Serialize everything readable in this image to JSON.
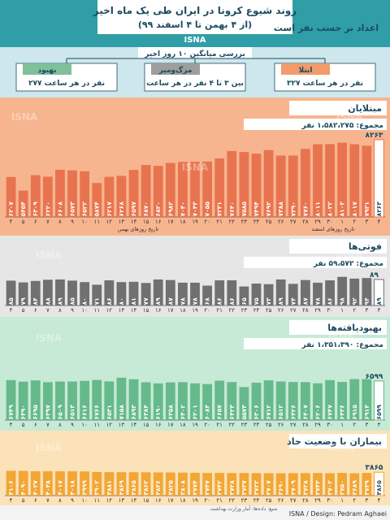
{
  "header": {
    "title": "روند شیوع کرونا در ایران طی یک ماه اخیر",
    "subtitle": "(از ۴ بهمن تا ۴ اسفند ۹۹)",
    "agency": "ISNA",
    "by_person_label": "اعداد بر حسب نفر است"
  },
  "summary": {
    "heading": "بررسی میانگین ۱۰ روز اخیر",
    "items": [
      {
        "title": "بهبود",
        "text": "۲۷۷ نفر در هر ساعت",
        "color": "#7fbf9b"
      },
      {
        "title": "مرگ‌ومیر",
        "text": "بین ۳ تا ۴ نفر در هر ساعت",
        "color": "#9e9e9e"
      },
      {
        "title": "ابتلا",
        "text": "۳۲۷ نفر در هر ساعت",
        "color": "#f29b6b"
      }
    ]
  },
  "footer": {
    "source": "منبع: داده‌ها: آمار وزارت بهداشت",
    "credit": "ISNA / Design: Pedram Aghaei",
    "watermark": "ISNA"
  },
  "chart_data": [
    {
      "type": "bar",
      "title": "مبتلایان",
      "total": "مجموع: ۱،۵۸۲،۲۷۵ نفر",
      "categories": [
        "۴",
        "۵",
        "۶",
        "۷",
        "۸",
        "۹",
        "۱۰",
        "۱۱",
        "۱۲",
        "۱۳",
        "۱۴",
        "۱۵",
        "۱۶",
        "۱۷",
        "۱۸",
        "۱۹",
        "۲۰",
        "۲۱",
        "۲۲",
        "۲۳",
        "۲۴",
        "۲۵",
        "۲۶",
        "۲۷",
        "۲۸",
        "۲۹",
        "۳۰",
        "۱",
        "۲",
        "۳",
        "۴"
      ],
      "labels": [
        "۶۲۰۷",
        "۵۴۵۴",
        "۶۳۰۹",
        "۶۲۲۰",
        "۶۶۰۸",
        "۶۵۷۳",
        "۶۵۲۲",
        "۵۸۷۴",
        "۶۲۱۷",
        "۶۲۶۸",
        "۶۵۹۷",
        "۶۸۷۰",
        "۶۸۲۰",
        "۶۹۸۲",
        "۷۰۴۰",
        "۷۰۴۳",
        "۷۰۵۵",
        "۷۲۳۱",
        "۷۶۴۰",
        "۷۵۸۵",
        "۷۴۹۴",
        "۷۶۹۲",
        "۷۳۸۸",
        "۷۳۹۰",
        "۷۷۶۰",
        "۸۰۱۱",
        "۸۰۲۲",
        "۸۱۰۳",
        "۸۰۱۷",
        "۷۹۳۱",
        "۸۲۶۳"
      ],
      "values": [
        6207,
        5454,
        6309,
        6220,
        6608,
        6573,
        6522,
        5874,
        6217,
        6268,
        6597,
        6870,
        6820,
        6982,
        7040,
        7043,
        7055,
        7231,
        7640,
        7585,
        7494,
        7692,
        7388,
        7390,
        7760,
        8011,
        8022,
        8103,
        8017,
        7931,
        8263
      ],
      "month_labels": [
        "تاریخ روزهای بهمن",
        "تاریخ روزهای اسفند"
      ],
      "color": "#e8744f"
    },
    {
      "type": "bar",
      "title": "فوتی‌ها",
      "total": "مجموع: ۵۹،۵۷۲ نفر",
      "categories": [
        "۴",
        "۵",
        "۶",
        "۷",
        "۸",
        "۹",
        "۱۰",
        "۱۱",
        "۱۲",
        "۱۳",
        "۱۴",
        "۱۵",
        "۱۶",
        "۱۷",
        "۱۸",
        "۱۹",
        "۲۰",
        "۲۱",
        "۲۲",
        "۲۳",
        "۲۴",
        "۲۵",
        "۲۶",
        "۲۷",
        "۲۸",
        "۲۹",
        "۳۰",
        "۱",
        "۲",
        "۳",
        "۴"
      ],
      "labels": [
        "۸۵",
        "۷۹",
        "۸۴",
        "۸۸",
        "۸۹",
        "۸۵",
        "۸۰",
        "۷۱",
        "۸۶",
        "۸۰",
        "۸۱",
        "۷۷",
        "۸۹",
        "۸۷",
        "۷۸",
        "۷۸",
        "۶۸",
        "۸۶",
        "۸۶",
        "۶۵",
        "۷۵",
        "۷۳",
        "۸۹",
        "۷۴",
        "۸۷",
        "۷۸",
        "۸۶",
        "۹۸",
        "۹۲",
        "۹۴",
        "۸۹"
      ],
      "values": [
        85,
        79,
        84,
        88,
        89,
        85,
        80,
        71,
        86,
        80,
        81,
        77,
        89,
        87,
        78,
        78,
        68,
        86,
        86,
        65,
        75,
        73,
        89,
        74,
        87,
        78,
        86,
        98,
        92,
        94,
        89
      ],
      "color": "#707070"
    },
    {
      "type": "bar",
      "title": "بهبودیافته‌ها",
      "total": "مجموع: ۱،۳۵۱،۳۹۰ نفر",
      "categories": [
        "۴",
        "۵",
        "۶",
        "۷",
        "۸",
        "۹",
        "۱۰",
        "۱۱",
        "۱۲",
        "۱۳",
        "۱۴",
        "۱۵",
        "۱۶",
        "۱۷",
        "۱۸",
        "۱۹",
        "۲۰",
        "۲۱",
        "۲۲",
        "۲۳",
        "۲۴",
        "۲۵",
        "۲۶",
        "۲۷",
        "۲۸",
        "۲۹",
        "۳۰",
        "۱",
        "۲",
        "۳",
        "۴"
      ],
      "labels": [
        "۶۷۴۹",
        "۶۴۹۰",
        "۶۶۹۵",
        "۶۳۹۷",
        "۶۵۰۹",
        "۶۵۱۳",
        "۶۶۱۶",
        "۶۷۶۶",
        "۶۵۳۱",
        "۷۱۵۸",
        "۶۸۹۳",
        "۶۳۸۴",
        "۶۱۹۰",
        "۶۳۵۸",
        "۶۴۰۲",
        "۶۲۰۱",
        "۶۰۸۴",
        "۶۶۵۷",
        "۶۴۲۳",
        "۵۵۷۳",
        "۶۳۰۶",
        "۶۷۱۲",
        "۶۵۱۲",
        "۶۴۲۶",
        "۶۴۰۷",
        "۶۲۰۶",
        "۶۷۴۷",
        "۶۴۳۶",
        "۶۹۱۵",
        "۶۹۱۴",
        "۶۵۹۹"
      ],
      "values": [
        6749,
        6490,
        6695,
        6397,
        6509,
        6513,
        6616,
        6766,
        6531,
        7158,
        6893,
        6384,
        6190,
        6358,
        6402,
        6201,
        6084,
        6657,
        6423,
        5573,
        6306,
        6712,
        6512,
        6426,
        6407,
        6206,
        6747,
        6436,
        6915,
        6914,
        6599
      ],
      "color": "#66b98a"
    },
    {
      "type": "bar",
      "title": "بیماران با وضعیت حاد",
      "categories": [
        "۴",
        "۵",
        "۶",
        "۷",
        "۸",
        "۹",
        "۱۰",
        "۱۱",
        "۱۲",
        "۱۳",
        "۱۴",
        "۱۵",
        "۱۶",
        "۱۷",
        "۱۸",
        "۱۹",
        "۲۰",
        "۲۱",
        "۲۲",
        "۲۳",
        "۲۴",
        "۲۵",
        "۲۶",
        "۲۷",
        "۲۸",
        "۲۹",
        "۳۰",
        "۱",
        "۲",
        "۳",
        "۴"
      ],
      "labels": [
        "۴۱۰۶",
        "۴۰۹۰",
        "۴۰۲۷",
        "۴۰۳۸",
        "۴۰۱۷",
        "۴۰۱۸",
        "۳۹۹۹",
        "۳۹۰۲",
        "۳۸۸۱",
        "۳۸۶۹",
        "۳۸۶۵",
        "۳۸۶۲",
        "۳۸۳۶",
        "۳۸۲۵",
        "۳۸۰۸",
        "۳۷۷۴",
        "۳۷۴۷",
        "۳۷۴۲",
        "۳۷۲۸",
        "۳۷۳۷",
        "۳۷۲۲",
        "۳۷۰۷",
        "۳۶۹۰",
        "۳۷۰۹",
        "۳۷۲۸",
        "۳۷۴۳",
        "۳۷۰۲",
        "۳۷۵۰",
        "۳۶۸۹",
        "۳۷۴۹",
        "۳۸۶۵"
      ],
      "values": [
        4106,
        4090,
        4027,
        4038,
        4017,
        4018,
        3999,
        3902,
        3881,
        3869,
        3865,
        3862,
        3836,
        3825,
        3808,
        3774,
        3747,
        3742,
        3728,
        3737,
        3722,
        3707,
        3690,
        3709,
        3728,
        3743,
        3702,
        3750,
        3689,
        3749,
        3865
      ],
      "color": "#f2a634"
    }
  ]
}
